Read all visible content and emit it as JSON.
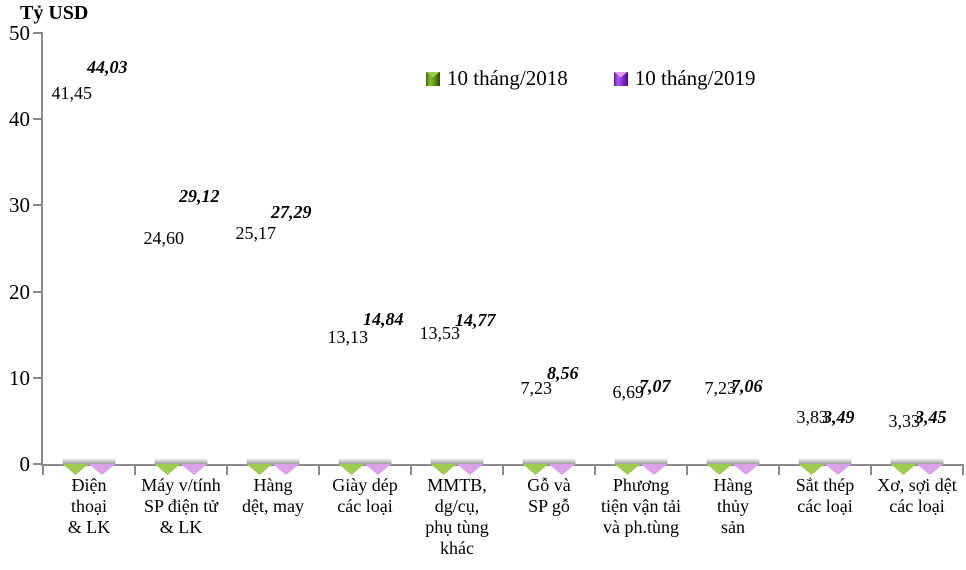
{
  "chart_data": {
    "type": "bar",
    "ylabel": "Tỷ USD",
    "ylim": [
      0,
      50
    ],
    "yticks": [
      0,
      10,
      20,
      30,
      40,
      50
    ],
    "grid": false,
    "legend_position": "top-center",
    "axis_color": "#8a8a8a",
    "categories": [
      "Điện\nthoại\n& LK",
      "Máy v/tính\nSP điện tử\n& LK",
      "Hàng\ndệt, may",
      "Giày dép\ncác loại",
      "MMTB,\ndg/cụ,\nphụ tùng\nkhác",
      "Gỗ và\nSP gỗ",
      "Phương\ntiện vận tải\nvà ph.tùng",
      "Hàng\nthủy\nsản",
      "Sắt thép\ncác loại",
      "Xơ, sợi dệt\ncác loại"
    ],
    "series": [
      {
        "name": "10 tháng/2018",
        "color": "#6B9E1F",
        "label_style": "regular",
        "values": [
          41.45,
          24.6,
          25.17,
          13.13,
          13.53,
          7.23,
          6.69,
          7.23,
          3.83,
          3.33
        ],
        "labels": [
          "41,45",
          "24,60",
          "25,17",
          "13,13",
          "13,53",
          "7,23",
          "6,69",
          "7,23",
          "3,83",
          "3,33"
        ]
      },
      {
        "name": "10 tháng/2019",
        "color": "#9933E8",
        "label_style": "bold-italic",
        "values": [
          44.03,
          29.12,
          27.29,
          14.84,
          14.77,
          8.56,
          7.07,
          7.06,
          3.49,
          3.45
        ],
        "labels": [
          "44,03",
          "29,12",
          "27,29",
          "14,84",
          "14,77",
          "8,56",
          "7,07",
          "7,06",
          "3,49",
          "3,45"
        ]
      }
    ]
  }
}
